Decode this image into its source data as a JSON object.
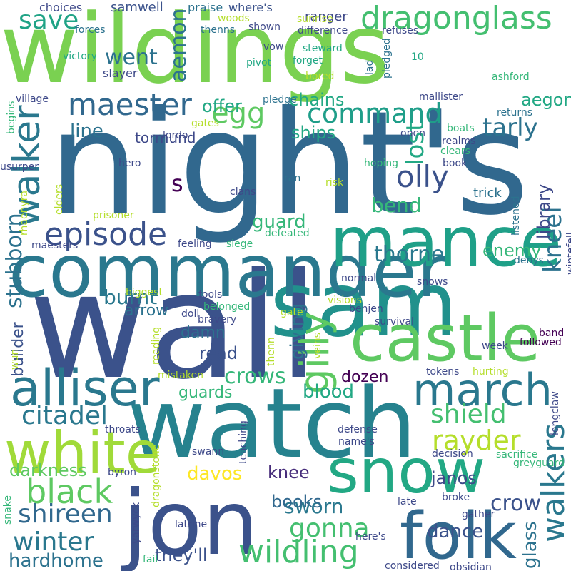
{
  "words": [
    {
      "text": "wildings",
      "color": "#7ad151"
    },
    {
      "text": "night's",
      "color": "#31688e"
    },
    {
      "text": "wall",
      "color": "#3b528b"
    },
    {
      "text": "watch",
      "color": "#26828e"
    },
    {
      "text": "sam",
      "color": "#21918c"
    },
    {
      "text": "jon",
      "color": "#3b528b"
    },
    {
      "text": "commander",
      "color": "#2a788e"
    },
    {
      "text": "castle",
      "color": "#5ec962"
    },
    {
      "text": "mance",
      "color": "#1fa088"
    },
    {
      "text": "snow",
      "color": "#22a884"
    },
    {
      "text": "folk",
      "color": "#31688e"
    },
    {
      "text": "white",
      "color": "#a0da39"
    },
    {
      "text": "alliser",
      "color": "#2a788e"
    },
    {
      "text": "march",
      "color": "#2a788e"
    },
    {
      "text": "dragonglass",
      "color": "#44bf70"
    },
    {
      "text": "wildling",
      "color": "#44bf70"
    },
    {
      "text": "black",
      "color": "#5ec962"
    },
    {
      "text": "walker",
      "color": "#2a788e"
    },
    {
      "text": "gilly",
      "color": "#5ec962"
    },
    {
      "text": "episode",
      "color": "#3b528b"
    },
    {
      "text": "maester",
      "color": "#31688e"
    },
    {
      "text": "command",
      "color": "#1f9e89"
    },
    {
      "text": "olly",
      "color": "#3b528b"
    },
    {
      "text": "walkers",
      "color": "#2a788e"
    },
    {
      "text": "citadel",
      "color": "#2a788e"
    },
    {
      "text": "shield",
      "color": "#44bf70"
    },
    {
      "text": "rayder",
      "color": "#b5de2b"
    },
    {
      "text": "shireen",
      "color": "#31688e"
    },
    {
      "text": "winter",
      "color": "#2a788e"
    },
    {
      "text": "gonna",
      "color": "#44bf70"
    },
    {
      "text": "crows",
      "color": "#35b779"
    },
    {
      "text": "egg",
      "color": "#5ec962"
    },
    {
      "text": "save",
      "color": "#20a386"
    },
    {
      "text": "went",
      "color": "#2c728e"
    },
    {
      "text": "aemon",
      "color": "#2c728e"
    },
    {
      "text": "tarly",
      "color": "#2c728e"
    },
    {
      "text": "lost",
      "color": "#22a884"
    },
    {
      "text": "kneel",
      "color": "#2c728e"
    },
    {
      "text": "thorne",
      "color": "#2a788e"
    },
    {
      "text": "stubborn",
      "color": "#2c728e"
    },
    {
      "text": "burnt",
      "color": "#2a788e"
    },
    {
      "text": "arrow",
      "color": "#2c728e"
    },
    {
      "text": "damn",
      "color": "#2c728e"
    },
    {
      "text": "read",
      "color": "#3b528b"
    },
    {
      "text": "guards",
      "color": "#35b779"
    },
    {
      "text": "giving",
      "color": "#2c728e"
    },
    {
      "text": "blood",
      "color": "#22a884"
    },
    {
      "text": "dozen",
      "color": "#440154"
    },
    {
      "text": "crow",
      "color": "#3b528b"
    },
    {
      "text": "dance",
      "color": "#3b528b"
    },
    {
      "text": "sworn",
      "color": "#2a788e"
    },
    {
      "text": "janos",
      "color": "#3e4989"
    },
    {
      "text": "davos",
      "color": "#fde725"
    },
    {
      "text": "darkness",
      "color": "#5ec962"
    },
    {
      "text": "books",
      "color": "#31688e"
    },
    {
      "text": "knee",
      "color": "#472d7b"
    },
    {
      "text": "hardhome",
      "color": "#2c728e"
    },
    {
      "text": "they'll",
      "color": "#3b528b"
    },
    {
      "text": "glass",
      "color": "#2c728e"
    },
    {
      "text": "chains",
      "color": "#22a884"
    },
    {
      "text": "offer",
      "color": "#22a884"
    },
    {
      "text": "line",
      "color": "#2c728e"
    },
    {
      "text": "ships",
      "color": "#22a884"
    },
    {
      "text": "bend",
      "color": "#35b779"
    },
    {
      "text": "guard",
      "color": "#35b779"
    },
    {
      "text": "library",
      "color": "#3e4989"
    },
    {
      "text": "enemy",
      "color": "#35b779"
    },
    {
      "text": "builder",
      "color": "#3b528b"
    },
    {
      "text": "aegon",
      "color": "#22a884"
    },
    {
      "text": "s",
      "color": "#440154"
    },
    {
      "text": "tormund",
      "color": "#3e4989"
    },
    {
      "text": "trick",
      "color": "#2c728e"
    },
    {
      "text": "ranger",
      "color": "#3e4989"
    },
    {
      "text": "samwell",
      "color": "#3b528b"
    },
    {
      "text": "choices",
      "color": "#3e4989"
    },
    {
      "text": "praise",
      "color": "#2c728e"
    },
    {
      "text": "where's",
      "color": "#3b528b"
    },
    {
      "text": "woods",
      "color": "#b5de2b"
    },
    {
      "text": "sunrise",
      "color": "#b5de2b"
    },
    {
      "text": "forces",
      "color": "#2c728e"
    },
    {
      "text": "thenns",
      "color": "#2c728e"
    },
    {
      "text": "shown",
      "color": "#3e4989"
    },
    {
      "text": "difference",
      "color": "#3e4989"
    },
    {
      "text": "refuses",
      "color": "#3e4989"
    },
    {
      "text": "victory",
      "color": "#22a884"
    },
    {
      "text": "vow",
      "color": "#3e4989"
    },
    {
      "text": "steward",
      "color": "#22a884"
    },
    {
      "text": "10",
      "color": "#22a884"
    },
    {
      "text": "pivot",
      "color": "#22a884"
    },
    {
      "text": "forget",
      "color": "#22a884"
    },
    {
      "text": "lad",
      "color": "#2c728e"
    },
    {
      "text": "pledged",
      "color": "#2c728e"
    },
    {
      "text": "slayer",
      "color": "#3e4989"
    },
    {
      "text": "bored",
      "color": "#b5de2b"
    },
    {
      "text": "ashford",
      "color": "#35b779"
    },
    {
      "text": "village",
      "color": "#3e4989"
    },
    {
      "text": "pledge",
      "color": "#2c728e"
    },
    {
      "text": "mallister",
      "color": "#3e4989"
    },
    {
      "text": "returns",
      "color": "#2c728e"
    },
    {
      "text": "begins",
      "color": "#35b779"
    },
    {
      "text": "gates",
      "color": "#b5de2b"
    },
    {
      "text": "boats",
      "color": "#35b779"
    },
    {
      "text": "open",
      "color": "#3e4989"
    },
    {
      "text": "realms",
      "color": "#3e4989"
    },
    {
      "text": "lordo",
      "color": "#3e4989"
    },
    {
      "text": "clears",
      "color": "#35b779"
    },
    {
      "text": "usurper",
      "color": "#3e4989"
    },
    {
      "text": "hero",
      "color": "#3e4989"
    },
    {
      "text": "hoping",
      "color": "#35b779"
    },
    {
      "text": "book",
      "color": "#3e4989"
    },
    {
      "text": "ran",
      "color": "#2c728e"
    },
    {
      "text": "risk",
      "color": "#b5de2b"
    },
    {
      "text": "clans",
      "color": "#3e4989"
    },
    {
      "text": "elders",
      "color": "#b5de2b"
    },
    {
      "text": "rhaenyra",
      "color": "#b5de2b"
    },
    {
      "text": "listened",
      "color": "#2c728e"
    },
    {
      "text": "prisoner",
      "color": "#b5de2b"
    },
    {
      "text": "defeated",
      "color": "#35b779"
    },
    {
      "text": "denys",
      "color": "#2c728e"
    },
    {
      "text": "maesters",
      "color": "#3e4989"
    },
    {
      "text": "feeling",
      "color": "#3e4989"
    },
    {
      "text": "siege",
      "color": "#35b779"
    },
    {
      "text": "wintefell",
      "color": "#3e4989"
    },
    {
      "text": "normal",
      "color": "#3e4989"
    },
    {
      "text": "snows",
      "color": "#3e4989"
    },
    {
      "text": "biggest",
      "color": "#b5de2b"
    },
    {
      "text": "fools",
      "color": "#3e4989"
    },
    {
      "text": "visions",
      "color": "#b5de2b"
    },
    {
      "text": "doll",
      "color": "#3e4989"
    },
    {
      "text": "belonged",
      "color": "#35b779"
    },
    {
      "text": "gate",
      "color": "#b5de2b"
    },
    {
      "text": "benjen",
      "color": "#3e4989"
    },
    {
      "text": "band",
      "color": "#440154"
    },
    {
      "text": "bravery",
      "color": "#3e4989"
    },
    {
      "text": "survival",
      "color": "#3e4989"
    },
    {
      "text": "followed",
      "color": "#440154"
    },
    {
      "text": "wun",
      "color": "#b5de2b"
    },
    {
      "text": "reading",
      "color": "#b5de2b"
    },
    {
      "text": "thenn",
      "color": "#b5de2b"
    },
    {
      "text": "veins",
      "color": "#b5de2b"
    },
    {
      "text": "week",
      "color": "#3e4989"
    },
    {
      "text": "tokens",
      "color": "#3e4989"
    },
    {
      "text": "mistaken",
      "color": "#b5de2b"
    },
    {
      "text": "hurting",
      "color": "#b5de2b"
    },
    {
      "text": "longclaw",
      "color": "#3e4989"
    },
    {
      "text": "throats",
      "color": "#3e4989"
    },
    {
      "text": "defense",
      "color": "#3e4989"
    },
    {
      "text": "name's",
      "color": "#3e4989"
    },
    {
      "text": "teaching",
      "color": "#3e4989"
    },
    {
      "text": "swann",
      "color": "#3e4989"
    },
    {
      "text": "decision",
      "color": "#3e4989"
    },
    {
      "text": "sacrifice",
      "color": "#35b779"
    },
    {
      "text": "byron",
      "color": "#3e4989"
    },
    {
      "text": "greyguard",
      "color": "#35b779"
    },
    {
      "text": "dragonstone",
      "color": "#b5de2b"
    },
    {
      "text": "broke",
      "color": "#3e4989"
    },
    {
      "text": "late",
      "color": "#3e4989"
    },
    {
      "text": "gather",
      "color": "#3e4989"
    },
    {
      "text": "snake",
      "color": "#35b779"
    },
    {
      "text": "yarwyck",
      "color": "#3e4989"
    },
    {
      "text": "latrine",
      "color": "#3e4989"
    },
    {
      "text": "here's",
      "color": "#3e4989"
    },
    {
      "text": "fail",
      "color": "#35b779"
    },
    {
      "text": "considered",
      "color": "#3e4989"
    },
    {
      "text": "obsidian",
      "color": "#3e4989"
    }
  ]
}
